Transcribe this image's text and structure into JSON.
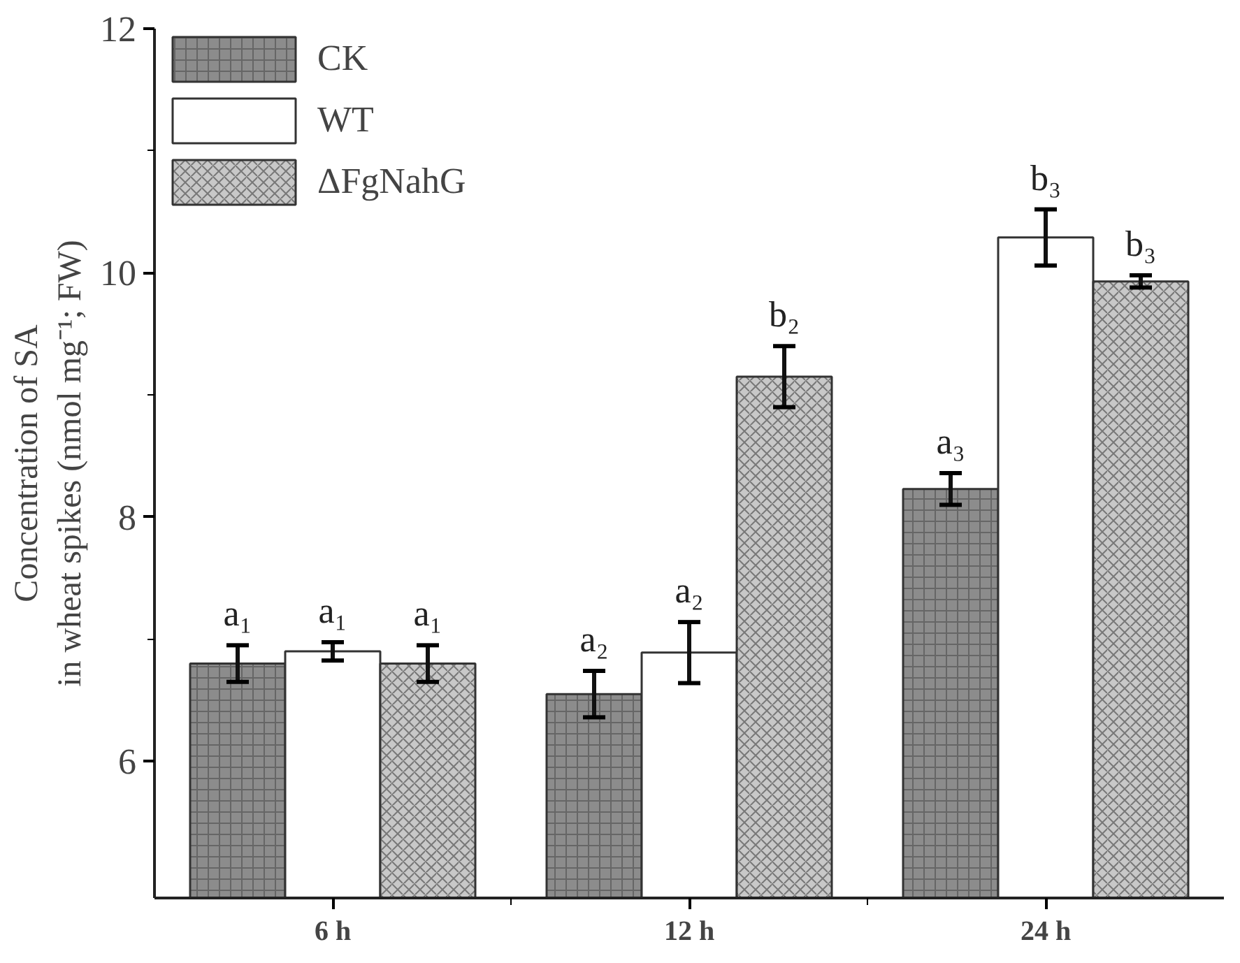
{
  "chart_data": {
    "type": "bar",
    "ylabel": "Concentration of SA\nin wheat spikes (nmol mg⁻¹; FW)",
    "categories": [
      "6 h",
      "12 h",
      "24 h"
    ],
    "ylim": [
      4.88,
      12
    ],
    "yticks": [
      6,
      8,
      10,
      12
    ],
    "grid": false,
    "legend": "top left",
    "series": [
      {
        "name": "CK",
        "color": "#8c8c8c",
        "values": [
          6.8,
          6.55,
          8.23
        ],
        "errors": [
          0.15,
          0.19,
          0.13
        ],
        "value_labels": [
          "a₁",
          "a₂",
          "a₃"
        ]
      },
      {
        "name": "WT",
        "color": "#ffffff",
        "values": [
          6.9,
          6.89,
          10.29
        ],
        "errors": [
          0.075,
          0.25,
          0.23
        ],
        "value_labels": [
          "a₁",
          "a₂",
          "b₃"
        ]
      },
      {
        "name": "ΔFgNahG",
        "color": "#c8c8c8",
        "values": [
          6.8,
          9.15,
          9.93
        ],
        "errors": [
          0.15,
          0.25,
          0.05
        ],
        "value_labels": [
          "a₁",
          "b₂",
          "b₃"
        ]
      }
    ]
  }
}
